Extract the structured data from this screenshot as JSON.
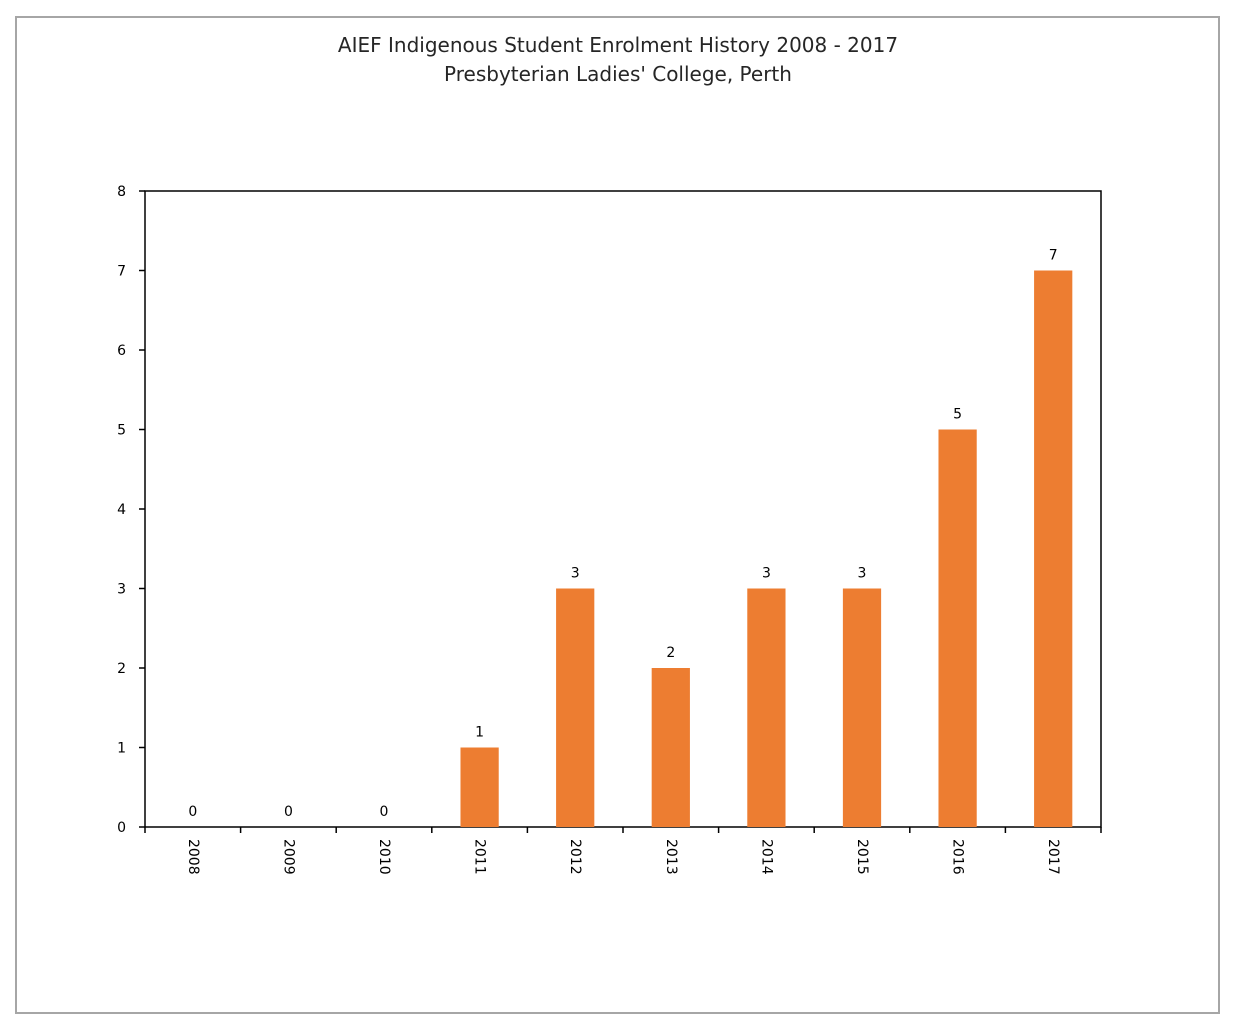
{
  "chart_data": {
    "type": "bar",
    "title": "AIEF Indigenous Student Enrolment History 2008 - 2017",
    "subtitle": "Presbyterian Ladies' College, Perth",
    "xlabel": "",
    "ylabel": "",
    "categories": [
      "2008",
      "2009",
      "2010",
      "2011",
      "2012",
      "2013",
      "2014",
      "2015",
      "2016",
      "2017"
    ],
    "values": [
      0,
      0,
      0,
      1,
      3,
      2,
      3,
      3,
      5,
      7
    ],
    "ylim": [
      0,
      8
    ],
    "yticks": [
      "0",
      "1",
      "2",
      "3",
      "4",
      "5",
      "6",
      "7",
      "8"
    ],
    "grid": false,
    "data_labels": true,
    "x_tick_rotation": "rotated 90 degrees clockwise",
    "bar_color": "#ed7d31",
    "axis_color": "#000000",
    "frame_color": "#a6a6a6"
  }
}
